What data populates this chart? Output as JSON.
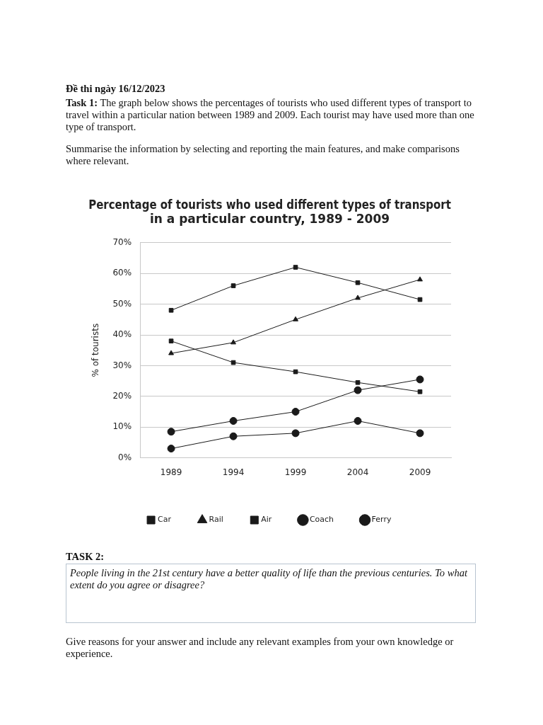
{
  "chart_data": {
    "type": "line",
    "title": "Percentage of tourists who used different types of transport\nin a particular country, 1989 - 2009",
    "ylabel": "% of tourists",
    "categories": [
      "1989",
      "1994",
      "1999",
      "2004",
      "2009"
    ],
    "series": [
      {
        "name": "Car",
        "color": "#1a1a1a",
        "marker": "square",
        "values": [
          48,
          56,
          62,
          57,
          51.5
        ]
      },
      {
        "name": "Rail",
        "color": "#1a1a1a",
        "marker": "triangle",
        "values": [
          34,
          37.5,
          45,
          52,
          58
        ]
      },
      {
        "name": "Air",
        "color": "#1a1a1a",
        "marker": "square",
        "values": [
          38,
          31,
          28,
          24.5,
          21.5
        ]
      },
      {
        "name": "Coach",
        "color": "#1a1a1a",
        "marker": "circle",
        "values": [
          8.5,
          12,
          15,
          22,
          25.5
        ]
      },
      {
        "name": "Ferry",
        "color": "#1a1a1a",
        "marker": "circle",
        "values": [
          3,
          7,
          8,
          12,
          8
        ]
      }
    ],
    "ylim": [
      0,
      70
    ],
    "yticks": [
      {
        "value": 0,
        "label": "0%"
      },
      {
        "value": 10,
        "label": "10%"
      },
      {
        "value": 20,
        "label": "20%"
      },
      {
        "value": 30,
        "label": "30%"
      },
      {
        "value": 40,
        "label": "40%"
      },
      {
        "value": 50,
        "label": "50%"
      },
      {
        "value": 60,
        "label": "60%"
      },
      {
        "value": 70,
        "label": "70%"
      }
    ],
    "grid": "y",
    "legend": "bottom",
    "line_style": "solid",
    "annotations": [
      "Đề thi ngày 16/12/2023",
      "Task 1:",
      "The graph below shows the percentages of tourists who used different types of transport to travel within a particular nation between 1989 and 2009. Each tourist may have used more than one type of transport.",
      "Summarise the information by selecting and reporting the main features, and make comparisons where relevant.",
      "TASK 2:",
      "People living in the 21st century have a better quality of life than the previous centuries. To what extent do you agree or disagree?",
      "Give reasons for your answer and include any relevant examples from your own knowledge or experience."
    ]
  }
}
